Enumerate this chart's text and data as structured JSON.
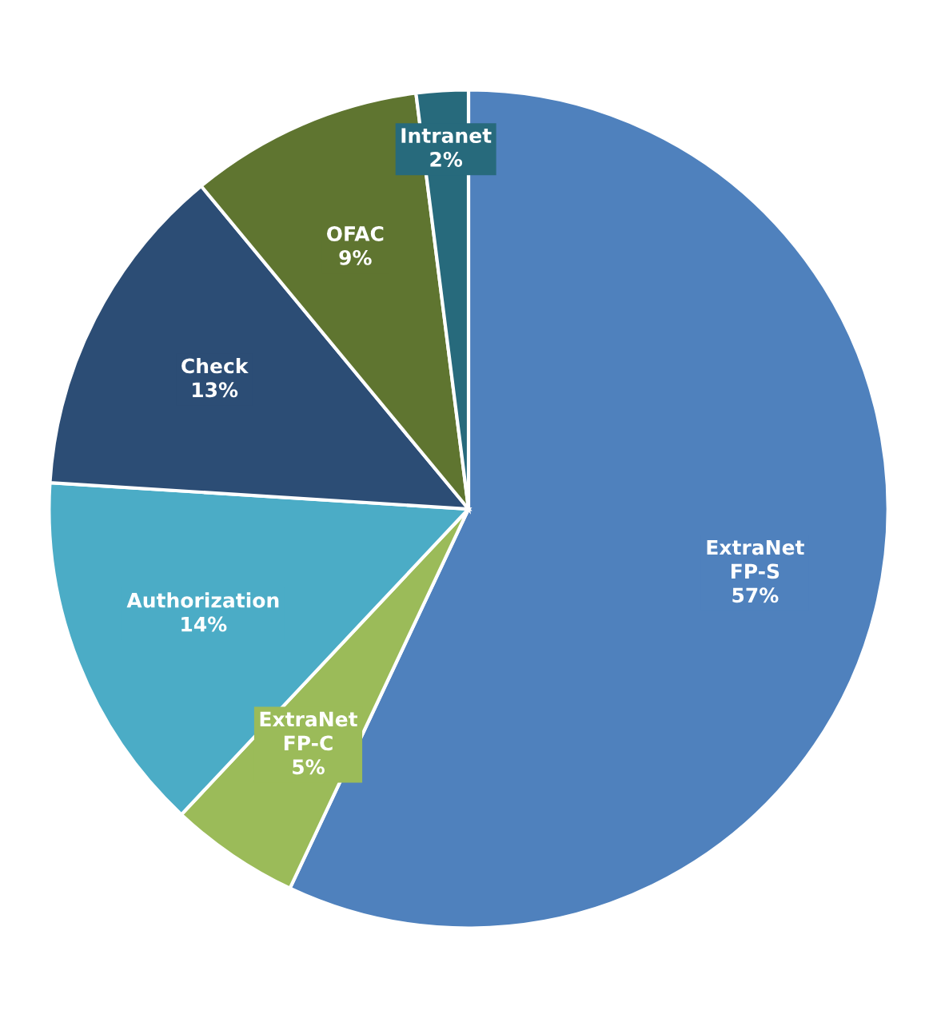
{
  "chart_data": {
    "type": "pie",
    "categories": [
      "ExtraNet FP-S",
      "ExtraNet FP-C",
      "Authorization",
      "Check",
      "OFAC",
      "Intranet"
    ],
    "values": [
      57,
      5,
      14,
      13,
      9,
      2
    ],
    "colors": [
      "#4f81bd",
      "#9bbb59",
      "#4bacc6",
      "#2c4d75",
      "#5f7530",
      "#276a7c"
    ],
    "value_labels": [
      "57%",
      "5%",
      "14%",
      "13%",
      "9%",
      "2%"
    ],
    "legend": false
  }
}
